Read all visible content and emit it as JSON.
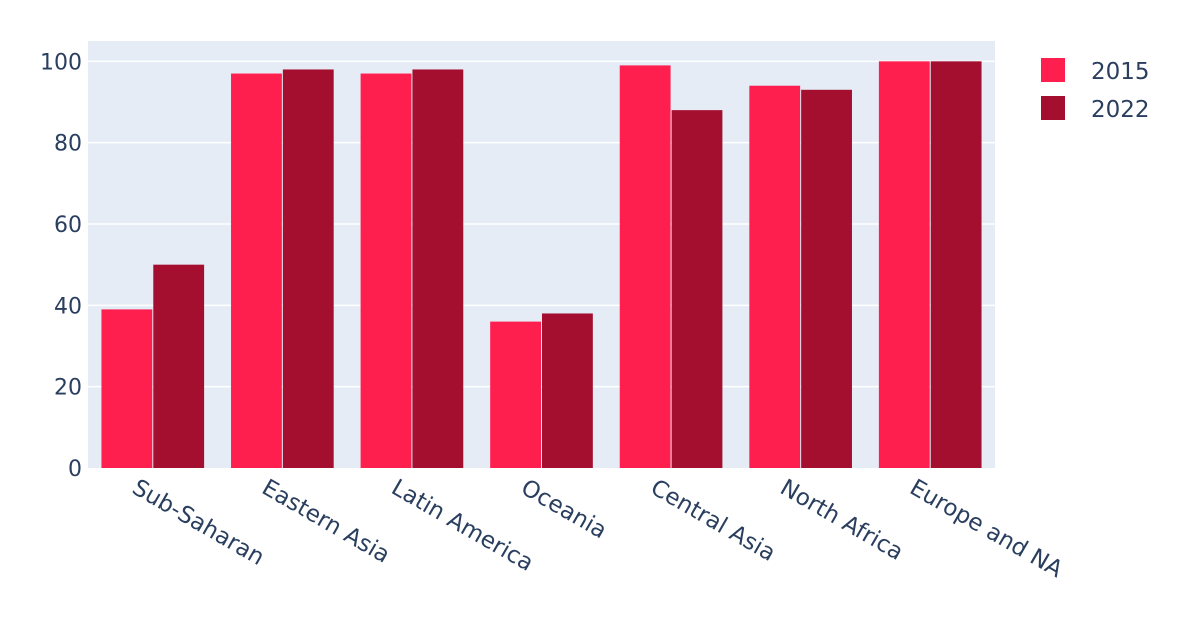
{
  "chart_data": {
    "type": "bar",
    "categories": [
      "Sub-Saharan",
      "Eastern Asia",
      "Latin America",
      "Oceania",
      "Central Asia",
      "North Africa",
      "Europe and NA"
    ],
    "series": [
      {
        "name": "2015",
        "values": [
          39,
          97,
          97,
          36,
          99,
          94,
          100
        ]
      },
      {
        "name": "2022",
        "values": [
          50,
          98,
          98,
          38,
          88,
          93,
          100
        ]
      }
    ],
    "y_ticks": [
      0,
      20,
      40,
      60,
      80,
      100
    ],
    "ylim": [
      0,
      105
    ],
    "grid": true,
    "legend_position": "top-right",
    "colors": {
      "2015": "#ff1f4f",
      "2022": "#a50f2f",
      "plot_background": "#e5ecf6",
      "gridline": "#ffffff",
      "text": "#2a3f5f"
    },
    "title": "",
    "xlabel": "",
    "ylabel": ""
  }
}
